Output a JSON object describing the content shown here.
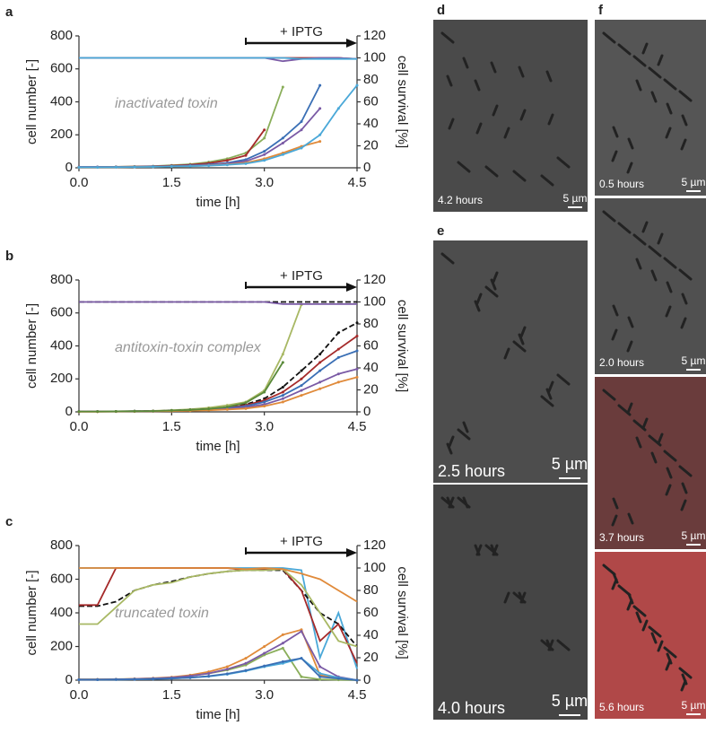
{
  "chart_data": [
    {
      "type": "line",
      "panel": "a",
      "xlabel": "time [h]",
      "ylabel": "cell number [-]",
      "y2label": "cell survival [%]",
      "inner_label": "inactivated toxin",
      "annotation": {
        "text": "+ IPTG",
        "x_start": 2.7,
        "x_end": 4.5
      },
      "xlim": [
        0,
        4.5
      ],
      "xticks": [
        {
          "value": 0,
          "label": "0.0"
        },
        1.5,
        {
          "value": 3,
          "label": "3.0"
        },
        4.5
      ],
      "ylim": [
        0,
        800
      ],
      "yticks": [
        0,
        200,
        400,
        600,
        800
      ],
      "y2lim": [
        0,
        120
      ],
      "y2ticks": [
        0,
        20,
        40,
        60,
        80,
        100,
        120
      ],
      "x": [
        0,
        0.3,
        0.6,
        0.9,
        1.2,
        1.5,
        1.8,
        2.1,
        2.4,
        2.7,
        3.0,
        3.3,
        3.6,
        3.9,
        4.2,
        4.5
      ],
      "series": [
        {
          "color": "#8aae5a",
          "values": [
            5,
            5,
            6,
            8,
            10,
            15,
            22,
            35,
            55,
            90,
            180,
            490,
            null,
            null,
            null,
            null
          ]
        },
        {
          "color": "#a52a2a",
          "values": [
            5,
            5,
            6,
            7,
            9,
            13,
            18,
            28,
            45,
            75,
            230,
            null,
            null,
            null,
            null,
            null
          ]
        },
        {
          "color": "#3a6fb5",
          "values": [
            5,
            5,
            5,
            6,
            8,
            10,
            14,
            20,
            30,
            50,
            100,
            180,
            280,
            500,
            null,
            null
          ]
        },
        {
          "color": "#7a5aa5",
          "values": [
            5,
            5,
            5,
            6,
            7,
            9,
            12,
            17,
            25,
            40,
            80,
            150,
            230,
            360,
            null,
            null
          ]
        },
        {
          "color": "#e08a3a",
          "values": [
            3,
            3,
            4,
            5,
            6,
            8,
            10,
            14,
            20,
            30,
            55,
            90,
            130,
            160,
            null,
            null
          ]
        },
        {
          "color": "#4aa8d8",
          "values": [
            3,
            3,
            4,
            5,
            6,
            8,
            10,
            13,
            18,
            25,
            45,
            80,
            120,
            200,
            360,
            500
          ]
        },
        {
          "color": "#a52a2a",
          "axis": "y2",
          "values": [
            100,
            100,
            100,
            100,
            100,
            100,
            100,
            100,
            100,
            100,
            100,
            100,
            100,
            100,
            100,
            99
          ]
        },
        {
          "color": "#7a5aa5",
          "axis": "y2",
          "values": [
            100,
            100,
            100,
            100,
            100,
            100,
            100,
            100,
            100,
            100,
            100,
            97,
            99,
            100,
            100,
            99
          ]
        },
        {
          "color": "#4aa8d8",
          "axis": "y2",
          "values": [
            100,
            100,
            100,
            100,
            100,
            100,
            100,
            100,
            100,
            100,
            100,
            100,
            99,
            99,
            99,
            99
          ]
        }
      ]
    },
    {
      "type": "line",
      "panel": "b",
      "xlabel": "time [h]",
      "ylabel": "cell number [-]",
      "y2label": "cell survival [%]",
      "inner_label": "antitoxin-toxin complex",
      "annotation": {
        "text": "+ IPTG",
        "x_start": 2.7,
        "x_end": 4.5
      },
      "xlim": [
        0,
        4.5
      ],
      "xticks": [
        {
          "value": 0,
          "label": "0.0"
        },
        1.5,
        {
          "value": 3,
          "label": "3.0"
        },
        4.5
      ],
      "ylim": [
        0,
        800
      ],
      "yticks": [
        0,
        200,
        400,
        600,
        800
      ],
      "y2lim": [
        0,
        120
      ],
      "y2ticks": [
        0,
        20,
        40,
        60,
        80,
        100,
        120
      ],
      "x": [
        0,
        0.3,
        0.6,
        0.9,
        1.2,
        1.5,
        1.8,
        2.1,
        2.4,
        2.7,
        3.0,
        3.3,
        3.6,
        3.9,
        4.2,
        4.5
      ],
      "series": [
        {
          "color": "#a8b864",
          "values": [
            2,
            2,
            3,
            4,
            6,
            10,
            15,
            25,
            40,
            60,
            130,
            350,
            650,
            null,
            null,
            null
          ]
        },
        {
          "color": "#111111",
          "dashed": true,
          "values": [
            2,
            2,
            3,
            4,
            5,
            8,
            12,
            18,
            28,
            45,
            80,
            150,
            250,
            350,
            480,
            540
          ]
        },
        {
          "color": "#a52a2a",
          "values": [
            2,
            2,
            3,
            4,
            5,
            7,
            10,
            16,
            25,
            40,
            70,
            120,
            200,
            300,
            380,
            460
          ]
        },
        {
          "color": "#3a6fb5",
          "values": [
            2,
            2,
            3,
            4,
            5,
            7,
            10,
            14,
            22,
            35,
            60,
            100,
            160,
            250,
            330,
            370
          ]
        },
        {
          "color": "#7a5aa5",
          "values": [
            2,
            2,
            2,
            3,
            4,
            6,
            8,
            12,
            18,
            28,
            45,
            80,
            130,
            180,
            230,
            260
          ]
        },
        {
          "color": "#e08a3a",
          "values": [
            1,
            1,
            2,
            3,
            4,
            5,
            7,
            10,
            14,
            20,
            35,
            60,
            100,
            140,
            180,
            210
          ]
        },
        {
          "color": "#5a8a3a",
          "values": [
            2,
            2,
            3,
            4,
            5,
            8,
            12,
            18,
            30,
            55,
            120,
            300,
            null,
            null,
            null,
            null
          ]
        },
        {
          "color": "#111111",
          "dashed": true,
          "axis": "y2",
          "values": [
            100,
            100,
            100,
            100,
            100,
            100,
            100,
            100,
            100,
            100,
            100,
            100,
            100,
            100,
            100,
            100
          ]
        },
        {
          "color": "#7a5aa5",
          "axis": "y2",
          "values": [
            100,
            100,
            100,
            100,
            100,
            100,
            100,
            100,
            100,
            100,
            100,
            98,
            98,
            98,
            98,
            98
          ]
        }
      ]
    },
    {
      "type": "line",
      "panel": "c",
      "xlabel": "time [h]",
      "ylabel": "cell number [-]",
      "y2label": "cell survival [%]",
      "inner_label": "truncated toxin",
      "annotation": {
        "text": "+ IPTG",
        "x_start": 2.7,
        "x_end": 4.5
      },
      "xlim": [
        0,
        4.5
      ],
      "xticks": [
        {
          "value": 0,
          "label": "0.0"
        },
        1.5,
        {
          "value": 3,
          "label": "3.0"
        },
        4.5
      ],
      "ylim": [
        0,
        800
      ],
      "yticks": [
        0,
        200,
        400,
        600,
        800
      ],
      "y2lim": [
        0,
        120
      ],
      "y2ticks": [
        0,
        20,
        40,
        60,
        80,
        100,
        120
      ],
      "x": [
        0,
        0.3,
        0.6,
        0.9,
        1.2,
        1.5,
        1.8,
        2.1,
        2.4,
        2.7,
        3.0,
        3.3,
        3.6,
        3.9,
        4.2,
        4.5
      ],
      "series": [
        {
          "color": "#8aae5a",
          "values": [
            5,
            5,
            5,
            8,
            10,
            15,
            25,
            40,
            60,
            90,
            150,
            190,
            20,
            5,
            2,
            0
          ]
        },
        {
          "color": "#e08a3a",
          "values": [
            5,
            5,
            6,
            8,
            12,
            18,
            30,
            50,
            80,
            130,
            200,
            270,
            300,
            30,
            10,
            0
          ]
        },
        {
          "color": "#7a5aa5",
          "values": [
            4,
            4,
            5,
            7,
            10,
            15,
            25,
            40,
            65,
            100,
            160,
            220,
            290,
            80,
            20,
            0
          ]
        },
        {
          "color": "#4aa8d8",
          "values": [
            3,
            3,
            4,
            5,
            7,
            10,
            15,
            22,
            35,
            55,
            80,
            100,
            130,
            40,
            15,
            0
          ]
        },
        {
          "color": "#3a6fb5",
          "values": [
            3,
            3,
            4,
            5,
            7,
            10,
            15,
            24,
            38,
            58,
            85,
            110,
            130,
            20,
            10,
            0
          ]
        },
        {
          "color": "#4aa8d8",
          "axis": "y2",
          "values": [
            100,
            100,
            100,
            100,
            100,
            100,
            100,
            100,
            100,
            100,
            100,
            100,
            98,
            20,
            60,
            10
          ]
        },
        {
          "color": "#111111",
          "dashed": true,
          "axis": "y2",
          "values": [
            66,
            66,
            70,
            80,
            85,
            88,
            92,
            95,
            97,
            98,
            98,
            98,
            80,
            60,
            50,
            30
          ]
        },
        {
          "color": "#a52a2a",
          "axis": "y2",
          "values": [
            67,
            67,
            100,
            100,
            100,
            100,
            100,
            100,
            100,
            98,
            99,
            99,
            80,
            35,
            50,
            15
          ]
        },
        {
          "color": "#a8b864",
          "axis": "y2",
          "values": [
            50,
            50,
            65,
            80,
            85,
            87,
            92,
            95,
            97,
            98,
            98,
            99,
            85,
            60,
            35,
            30
          ]
        },
        {
          "color": "#e08a3a",
          "axis": "y2",
          "values": [
            100,
            100,
            100,
            100,
            100,
            100,
            100,
            100,
            100,
            99,
            100,
            99,
            95,
            90,
            80,
            70
          ]
        }
      ]
    }
  ],
  "image_panels": [
    {
      "label": "d",
      "time": "4.2 hours",
      "scale": "5 µm"
    },
    {
      "label": "e",
      "time": "2.5 hours",
      "scale": "5 µm"
    },
    {
      "time": "4.0 hours",
      "scale": "5 µm"
    },
    {
      "label": "f",
      "time": "0.5 hours",
      "scale": "5 µm"
    },
    {
      "time": "2.0 hours",
      "scale": "5 µm"
    },
    {
      "time": "3.7 hours",
      "scale": "5 µm"
    },
    {
      "time": "5.6 hours",
      "scale": "5 µm"
    }
  ]
}
